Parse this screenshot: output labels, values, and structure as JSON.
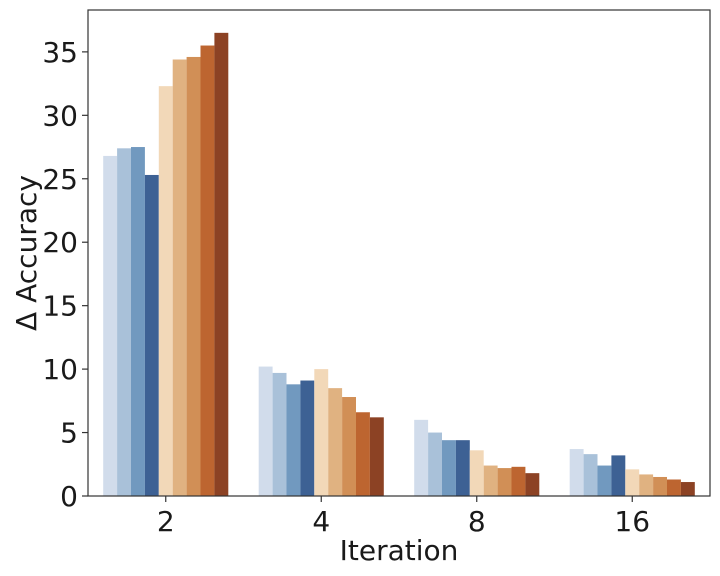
{
  "chart_data": {
    "type": "bar",
    "title": "",
    "xlabel": "Iteration",
    "ylabel": "Δ Accuracy",
    "categories": [
      "2",
      "4",
      "8",
      "16"
    ],
    "ylim": [
      0,
      38.3
    ],
    "yticks": [
      0,
      5,
      10,
      15,
      20,
      25,
      30,
      35
    ],
    "grid": false,
    "legend": "none",
    "colors": [
      "#d1dceb",
      "#a9c1d9",
      "#7199bf",
      "#3d6194",
      "#f2d8b8",
      "#e0b281",
      "#d18f56",
      "#bd6530",
      "#8c4224"
    ],
    "series": [
      {
        "values": [
          26.8,
          10.2,
          6.0,
          3.7
        ]
      },
      {
        "values": [
          27.4,
          9.7,
          5.0,
          3.3
        ]
      },
      {
        "values": [
          27.5,
          8.8,
          4.4,
          2.4
        ]
      },
      {
        "values": [
          25.3,
          9.1,
          4.4,
          3.2
        ]
      },
      {
        "values": [
          32.3,
          10.0,
          3.6,
          2.1
        ]
      },
      {
        "values": [
          34.4,
          8.5,
          2.4,
          1.7
        ]
      },
      {
        "values": [
          34.6,
          7.8,
          2.2,
          1.5
        ]
      },
      {
        "values": [
          35.5,
          6.6,
          2.3,
          1.3
        ]
      },
      {
        "values": [
          36.5,
          6.2,
          1.8,
          1.1
        ]
      }
    ]
  }
}
